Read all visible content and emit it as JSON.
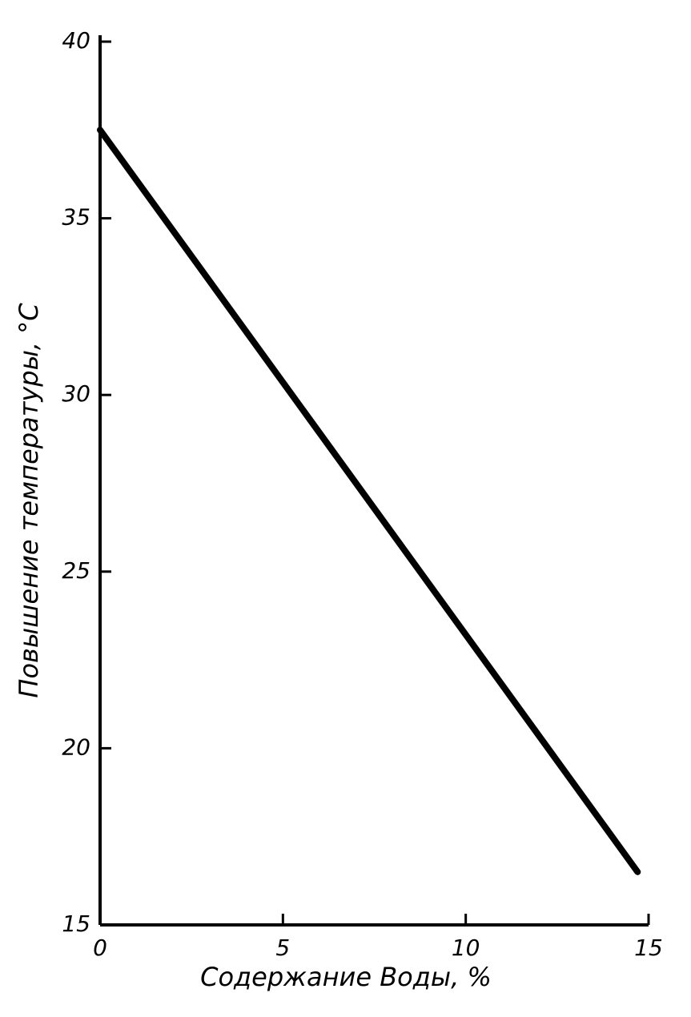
{
  "chart_data": {
    "type": "line",
    "x_label": "Содержание Воды, %",
    "y_label": "Повышение температуры, °С",
    "x": [
      0,
      14.7
    ],
    "series": [
      {
        "color": "#000000",
        "values": [
          37.5,
          16.5
        ]
      }
    ],
    "xlim": [
      0,
      15
    ],
    "xticks": [
      0,
      5,
      10,
      15
    ],
    "ylim": [
      15,
      40
    ],
    "yticks": [
      15,
      20,
      25,
      30,
      35,
      40
    ]
  }
}
